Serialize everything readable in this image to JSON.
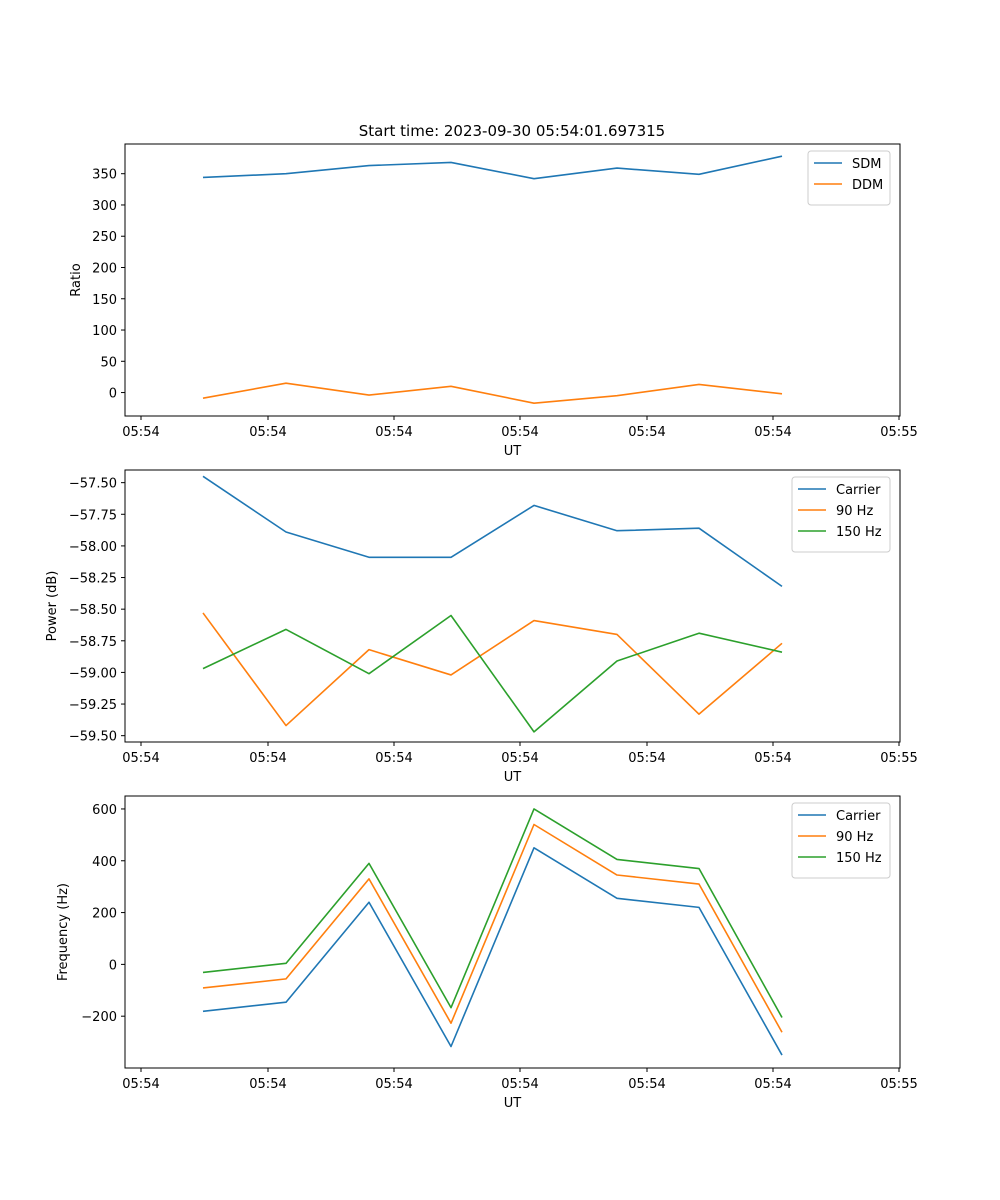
{
  "chart_data": [
    {
      "type": "line",
      "title": "Start time: 2023-09-30 05:54:01.697315",
      "xlabel": "UT",
      "ylabel": "Ratio",
      "x_tick_labels": [
        "05:54",
        "05:54",
        "05:54",
        "05:54",
        "05:54",
        "05:54",
        "05:54",
        "05:55"
      ],
      "yticks": [
        0,
        50,
        100,
        150,
        200,
        250,
        300,
        350
      ],
      "ylim": [
        -37.5,
        397.5
      ],
      "legend_position": "top-right",
      "series": [
        {
          "name": "SDM",
          "color": "#1f77b4",
          "values": [
            344,
            350,
            363,
            368,
            342,
            359,
            349,
            378
          ]
        },
        {
          "name": "DDM",
          "color": "#ff7f0e",
          "values": [
            -9,
            15,
            -4,
            10,
            -17,
            -5,
            13,
            -2
          ]
        }
      ]
    },
    {
      "type": "line",
      "title": "",
      "xlabel": "UT",
      "ylabel": "Power (dB)",
      "x_tick_labels": [
        "05:54",
        "05:54",
        "05:54",
        "05:54",
        "05:54",
        "05:54",
        "05:54",
        "05:55"
      ],
      "yticks": [
        -57.5,
        -57.75,
        -58.0,
        -58.25,
        -58.5,
        -58.75,
        -59.0,
        -59.25,
        -59.5
      ],
      "ytick_labels": [
        "−57.50",
        "−57.75",
        "−58.00",
        "−58.25",
        "−58.50",
        "−58.75",
        "−59.00",
        "−59.25",
        "−59.50"
      ],
      "ylim": [
        -59.55,
        -57.4
      ],
      "legend_position": "top-right",
      "series": [
        {
          "name": "Carrier",
          "color": "#1f77b4",
          "values": [
            -57.45,
            -57.89,
            -58.09,
            -58.09,
            -57.68,
            -57.88,
            -57.86,
            -58.32
          ]
        },
        {
          "name": "90 Hz",
          "color": "#ff7f0e",
          "values": [
            -58.53,
            -59.42,
            -58.82,
            -59.02,
            -58.59,
            -58.7,
            -59.33,
            -58.77
          ]
        },
        {
          "name": "150 Hz",
          "color": "#2ca02c",
          "values": [
            -58.97,
            -58.66,
            -59.01,
            -58.55,
            -59.47,
            -58.91,
            -58.69,
            -58.84
          ]
        }
      ]
    },
    {
      "type": "line",
      "title": "",
      "xlabel": "UT",
      "ylabel": "Frequency (Hz)",
      "x_tick_labels": [
        "05:54",
        "05:54",
        "05:54",
        "05:54",
        "05:54",
        "05:54",
        "05:54",
        "05:55"
      ],
      "yticks": [
        -200,
        0,
        200,
        400,
        600
      ],
      "ytick_labels": [
        "−200",
        "0",
        "200",
        "400",
        "600"
      ],
      "ylim": [
        -400,
        650
      ],
      "legend_position": "top-right",
      "series": [
        {
          "name": "Carrier",
          "color": "#1f77b4",
          "values": [
            -181,
            -146,
            240,
            -317,
            450,
            255,
            220,
            -350
          ]
        },
        {
          "name": "90 Hz",
          "color": "#ff7f0e",
          "values": [
            -91,
            -56,
            330,
            -227,
            540,
            345,
            310,
            -262
          ]
        },
        {
          "name": "150 Hz",
          "color": "#2ca02c",
          "values": [
            -31,
            4,
            390,
            -167,
            600,
            405,
            370,
            -205
          ]
        }
      ]
    }
  ]
}
